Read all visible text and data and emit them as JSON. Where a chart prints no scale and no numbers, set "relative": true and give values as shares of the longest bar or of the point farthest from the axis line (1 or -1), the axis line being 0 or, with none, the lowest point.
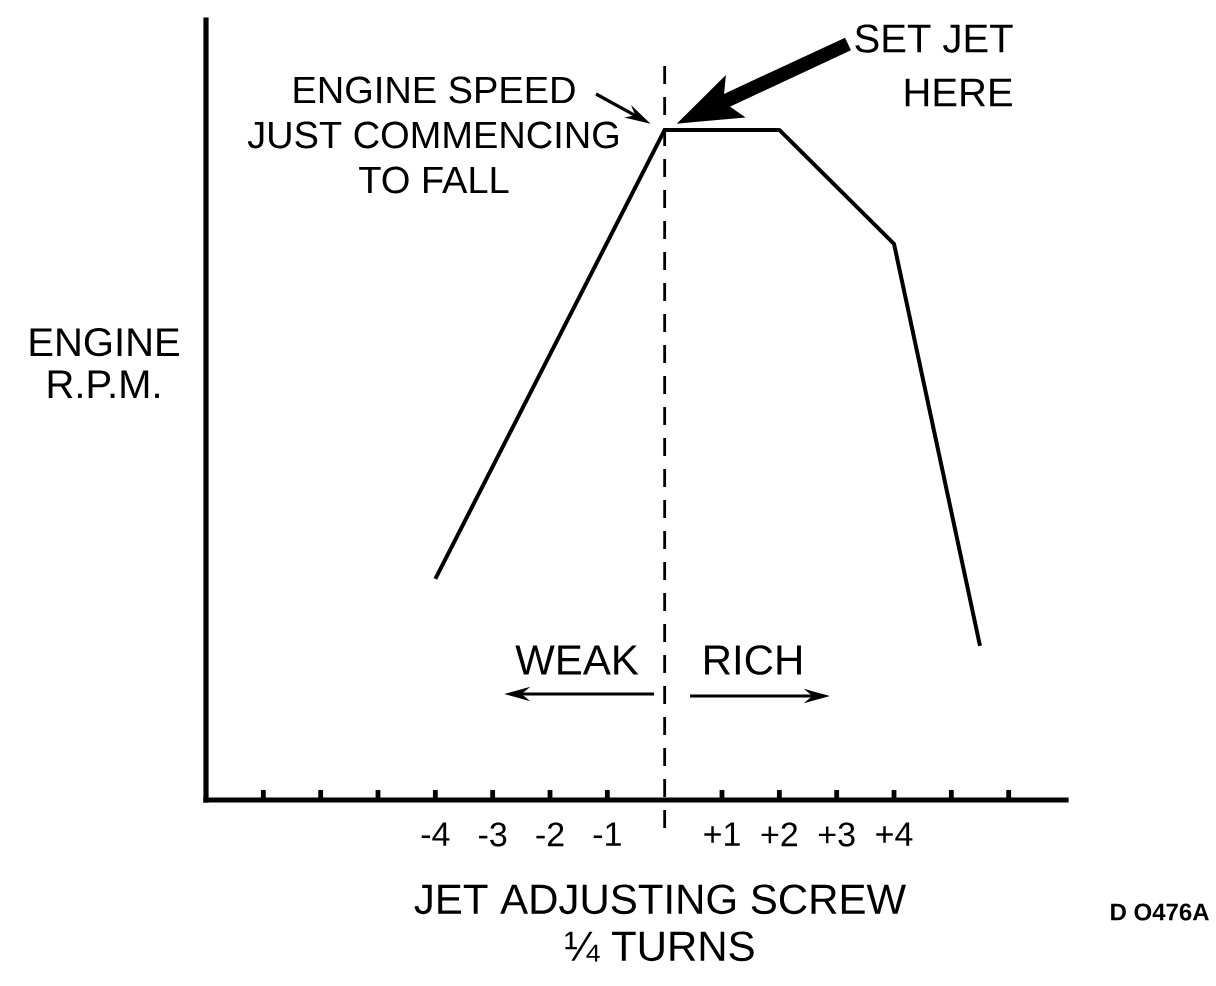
{
  "chart_data": {
    "type": "line",
    "xlabel": "JET ADJUSTING SCREW ¼ TURNS",
    "ylabel": "ENGINE R.P.M.",
    "x": [
      -4,
      0,
      2,
      4,
      5.5
    ],
    "series": [
      {
        "color": "#000000",
        "values": [
          0.33,
          1,
          1,
          0.83,
          0.23
        ]
      }
    ],
    "relative": true,
    "xlim": [
      -8,
      7
    ],
    "xticks": [
      {
        "value": -7,
        "label": null
      },
      {
        "value": -6,
        "label": null
      },
      {
        "value": -5,
        "label": null
      },
      -4,
      -3,
      -2,
      -1,
      {
        "value": 1,
        "label": "+1"
      },
      {
        "value": 2,
        "label": "+2"
      },
      {
        "value": 3,
        "label": "+3"
      },
      {
        "value": 4,
        "label": "+4"
      },
      {
        "value": 5,
        "label": null
      },
      {
        "value": 6,
        "label": null
      }
    ],
    "ref_lines": [
      {
        "axis": "x",
        "value": 0,
        "line_style": "dashed"
      }
    ],
    "annotations": [
      {
        "text": "ENGINE SPEED JUST COMMENCING TO FALL",
        "x": 0,
        "y": 1
      },
      "SET JET HERE",
      "WEAK",
      "RICH",
      "D O476A"
    ]
  }
}
